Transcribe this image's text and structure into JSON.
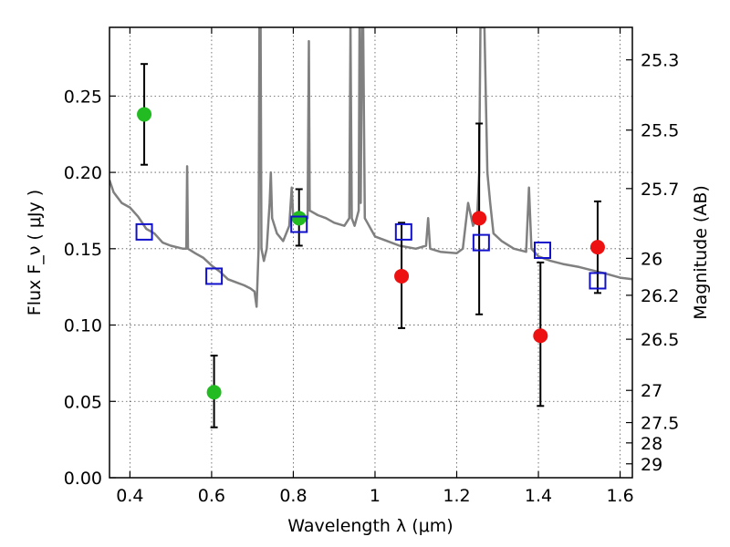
{
  "chart_data": {
    "type": "scatter",
    "xlabel": "Wavelength  λ (μm)",
    "ylabel": "Flux  F_ν  ( μJy )",
    "y2label": "Magnitude (AB)",
    "xlim": [
      0.35,
      1.63
    ],
    "ylim": [
      0.0,
      0.295
    ],
    "x_ticks": [
      0.4,
      0.6,
      0.8,
      1.0,
      1.2,
      1.4,
      1.6
    ],
    "x_tick_labels": [
      "0.4",
      "0.6",
      "0.8",
      "1",
      "1.2",
      "1.4",
      "1.6"
    ],
    "y_ticks": [
      0.0,
      0.05,
      0.1,
      0.15,
      0.2,
      0.25
    ],
    "y_tick_labels": [
      "0.00",
      "0.05",
      "0.10",
      "0.15",
      "0.20",
      "0.25"
    ],
    "y2_ticks": [
      {
        "label": "25.3",
        "flux": 0.2737
      },
      {
        "label": "25.5",
        "flux": 0.2277
      },
      {
        "label": "25.7",
        "flux": 0.1894
      },
      {
        "label": "26",
        "flux": 0.1437
      },
      {
        "label": "26.2",
        "flux": 0.1195
      },
      {
        "label": "26.5",
        "flux": 0.0907
      },
      {
        "label": "27",
        "flux": 0.0572
      },
      {
        "label": "27.5",
        "flux": 0.0361
      },
      {
        "label": "28",
        "flux": 0.0228
      },
      {
        "label": "29",
        "flux": 0.0091
      }
    ],
    "grid": true,
    "series": [
      {
        "kind": "points",
        "marker": "circle",
        "color": "#22bb22",
        "points": [
          {
            "x": 0.435,
            "y": 0.238,
            "err_low": 0.205,
            "err_high": 0.271
          },
          {
            "x": 0.606,
            "y": 0.056,
            "err_low": 0.033,
            "err_high": 0.08
          },
          {
            "x": 0.814,
            "y": 0.17,
            "err_low": 0.152,
            "err_high": 0.189
          }
        ]
      },
      {
        "kind": "points",
        "marker": "circle",
        "color": "#ee1111",
        "points": [
          {
            "x": 1.065,
            "y": 0.132,
            "err_low": 0.098,
            "err_high": 0.167
          },
          {
            "x": 1.255,
            "y": 0.17,
            "err_low": 0.107,
            "err_high": 0.232
          },
          {
            "x": 1.405,
            "y": 0.093,
            "err_low": 0.047,
            "err_high": 0.141
          },
          {
            "x": 1.545,
            "y": 0.151,
            "err_low": 0.121,
            "err_high": 0.181
          }
        ]
      },
      {
        "kind": "points",
        "marker": "open-square",
        "color": "#1111cc",
        "points": [
          {
            "x": 0.435,
            "y": 0.161
          },
          {
            "x": 0.606,
            "y": 0.132
          },
          {
            "x": 0.814,
            "y": 0.166
          },
          {
            "x": 1.07,
            "y": 0.161
          },
          {
            "x": 1.26,
            "y": 0.154
          },
          {
            "x": 1.41,
            "y": 0.149
          },
          {
            "x": 1.545,
            "y": 0.129
          }
        ]
      },
      {
        "kind": "line",
        "color": "#808080",
        "points": [
          [
            0.35,
            0.195
          ],
          [
            0.36,
            0.187
          ],
          [
            0.38,
            0.18
          ],
          [
            0.4,
            0.177
          ],
          [
            0.42,
            0.171
          ],
          [
            0.44,
            0.163
          ],
          [
            0.46,
            0.16
          ],
          [
            0.48,
            0.154
          ],
          [
            0.5,
            0.152
          ],
          [
            0.53,
            0.15
          ],
          [
            0.538,
            0.15
          ],
          [
            0.54,
            0.204
          ],
          [
            0.542,
            0.15
          ],
          [
            0.56,
            0.147
          ],
          [
            0.58,
            0.144
          ],
          [
            0.6,
            0.139
          ],
          [
            0.62,
            0.135
          ],
          [
            0.64,
            0.13
          ],
          [
            0.66,
            0.128
          ],
          [
            0.68,
            0.126
          ],
          [
            0.695,
            0.124
          ],
          [
            0.705,
            0.122
          ],
          [
            0.71,
            0.112
          ],
          [
            0.715,
            0.15
          ],
          [
            0.717,
            0.295
          ],
          [
            0.72,
            0.295
          ],
          [
            0.722,
            0.15
          ],
          [
            0.728,
            0.142
          ],
          [
            0.735,
            0.15
          ],
          [
            0.742,
            0.18
          ],
          [
            0.745,
            0.2
          ],
          [
            0.748,
            0.17
          ],
          [
            0.76,
            0.16
          ],
          [
            0.775,
            0.155
          ],
          [
            0.79,
            0.165
          ],
          [
            0.796,
            0.19
          ],
          [
            0.8,
            0.17
          ],
          [
            0.82,
            0.172
          ],
          [
            0.835,
            0.17
          ],
          [
            0.838,
            0.286
          ],
          [
            0.84,
            0.175
          ],
          [
            0.86,
            0.172
          ],
          [
            0.88,
            0.17
          ],
          [
            0.9,
            0.167
          ],
          [
            0.925,
            0.165
          ],
          [
            0.937,
            0.17
          ],
          [
            0.94,
            0.295
          ],
          [
            0.943,
            0.17
          ],
          [
            0.95,
            0.165
          ],
          [
            0.96,
            0.175
          ],
          [
            0.962,
            0.295
          ],
          [
            0.965,
            0.18
          ],
          [
            0.968,
            0.295
          ],
          [
            0.971,
            0.295
          ],
          [
            0.975,
            0.17
          ],
          [
            1.0,
            0.158
          ],
          [
            1.03,
            0.155
          ],
          [
            1.06,
            0.152
          ],
          [
            1.1,
            0.15
          ],
          [
            1.125,
            0.152
          ],
          [
            1.13,
            0.17
          ],
          [
            1.135,
            0.15
          ],
          [
            1.16,
            0.148
          ],
          [
            1.2,
            0.147
          ],
          [
            1.215,
            0.15
          ],
          [
            1.228,
            0.18
          ],
          [
            1.24,
            0.165
          ],
          [
            1.25,
            0.17
          ],
          [
            1.255,
            0.2
          ],
          [
            1.258,
            0.295
          ],
          [
            1.262,
            0.295
          ],
          [
            1.268,
            0.295
          ],
          [
            1.275,
            0.2
          ],
          [
            1.282,
            0.18
          ],
          [
            1.29,
            0.16
          ],
          [
            1.31,
            0.155
          ],
          [
            1.34,
            0.15
          ],
          [
            1.37,
            0.148
          ],
          [
            1.377,
            0.19
          ],
          [
            1.383,
            0.15
          ],
          [
            1.4,
            0.145
          ],
          [
            1.43,
            0.142
          ],
          [
            1.46,
            0.14
          ],
          [
            1.5,
            0.138
          ],
          [
            1.53,
            0.136
          ],
          [
            1.56,
            0.134
          ],
          [
            1.6,
            0.131
          ],
          [
            1.63,
            0.13
          ]
        ]
      }
    ]
  }
}
